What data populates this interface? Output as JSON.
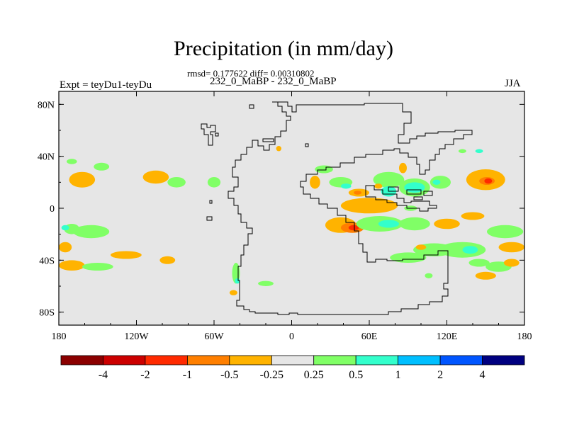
{
  "figure": {
    "title": "Precipitation (in mm/day)",
    "subtitle": "rmsd= 0.177622 diff= 0.00310802",
    "case_label": "232_0_MaBP - 232_0_MaBP",
    "left_label": "Expt = teyDu1-teyDu",
    "right_label": "JJA"
  },
  "map": {
    "background_color": "#e6e6e6",
    "lon_range": [
      -180,
      180
    ],
    "lat_range": [
      -90,
      90
    ],
    "x_ticks": [
      {
        "value": -180,
        "label": "180"
      },
      {
        "value": -120,
        "label": "120W"
      },
      {
        "value": -60,
        "label": "60W"
      },
      {
        "value": 0,
        "label": "0"
      },
      {
        "value": 60,
        "label": "60E"
      },
      {
        "value": 120,
        "label": "120E"
      },
      {
        "value": 180,
        "label": "180"
      }
    ],
    "y_ticks": [
      {
        "value": 80,
        "label": "80N"
      },
      {
        "value": 40,
        "label": "40N"
      },
      {
        "value": 0,
        "label": "0"
      },
      {
        "value": -40,
        "label": "40S"
      },
      {
        "value": -80,
        "label": "80S"
      }
    ]
  },
  "colorbar": {
    "colors": [
      "#8b0000",
      "#cc0000",
      "#ff2a00",
      "#ff7f00",
      "#ffb300",
      "#e6e6e6",
      "#80ff66",
      "#33ffcc",
      "#00bfff",
      "#0055ff",
      "#000080"
    ],
    "labels": [
      "-4",
      "-2",
      "-1",
      "-0.5",
      "-0.25",
      "0.25",
      "0.5",
      "1",
      "2",
      "4"
    ]
  },
  "anomalies": [
    {
      "lon": -162,
      "lat": 22,
      "rlon": 10,
      "rlat": 6,
      "color": "#ffb300"
    },
    {
      "lon": -170,
      "lat": 36,
      "rlon": 4,
      "rlat": 2,
      "color": "#80ff66"
    },
    {
      "lon": -147,
      "lat": 32,
      "rlon": 6,
      "rlat": 3,
      "color": "#80ff66"
    },
    {
      "lon": -170,
      "lat": -16,
      "rlon": 6,
      "rlat": 4,
      "color": "#80ff66"
    },
    {
      "lon": -175,
      "lat": -15,
      "rlon": 3,
      "rlat": 2,
      "color": "#33ffcc"
    },
    {
      "lon": -155,
      "lat": -18,
      "rlon": 14,
      "rlat": 5,
      "color": "#80ff66"
    },
    {
      "lon": -175,
      "lat": -30,
      "rlon": 5,
      "rlat": 4,
      "color": "#ffb300"
    },
    {
      "lon": -170,
      "lat": -44,
      "rlon": 10,
      "rlat": 4,
      "color": "#ffb300"
    },
    {
      "lon": -150,
      "lat": -45,
      "rlon": 12,
      "rlat": 3,
      "color": "#80ff66"
    },
    {
      "lon": -128,
      "lat": -36,
      "rlon": 12,
      "rlat": 3,
      "color": "#ffb300"
    },
    {
      "lon": -96,
      "lat": -40,
      "rlon": 6,
      "rlat": 3,
      "color": "#ffb300"
    },
    {
      "lon": -105,
      "lat": 24,
      "rlon": 10,
      "rlat": 5,
      "color": "#ffb300"
    },
    {
      "lon": -89,
      "lat": 20,
      "rlon": 7,
      "rlat": 4,
      "color": "#80ff66"
    },
    {
      "lon": -60,
      "lat": 20,
      "rlon": 5,
      "rlat": 4,
      "color": "#80ff66"
    },
    {
      "lon": -43,
      "lat": -50,
      "rlon": 3,
      "rlat": 8,
      "color": "#80ff66"
    },
    {
      "lon": -42,
      "lat": -56,
      "rlon": 2,
      "rlat": 2,
      "color": "#33ffcc"
    },
    {
      "lon": -45,
      "lat": -65,
      "rlon": 3,
      "rlat": 2,
      "color": "#ffb300"
    },
    {
      "lon": -20,
      "lat": -58,
      "rlon": 6,
      "rlat": 2,
      "color": "#80ff66"
    },
    {
      "lon": -10,
      "lat": 46,
      "rlon": 2,
      "rlat": 2,
      "color": "#ffb300"
    },
    {
      "lon": 25,
      "lat": 30,
      "rlon": 7,
      "rlat": 3,
      "color": "#80ff66"
    },
    {
      "lon": 18,
      "lat": 20,
      "rlon": 4,
      "rlat": 5,
      "color": "#ffb300"
    },
    {
      "lon": 38,
      "lat": 20,
      "rlon": 9,
      "rlat": 4,
      "color": "#80ff66"
    },
    {
      "lon": 42,
      "lat": 17,
      "rlon": 4,
      "rlat": 2,
      "color": "#33ffcc"
    },
    {
      "lon": 52,
      "lat": 12,
      "rlon": 8,
      "rlat": 3,
      "color": "#ffb300"
    },
    {
      "lon": 51,
      "lat": 12,
      "rlon": 3,
      "rlat": 1.5,
      "color": "#ff7f00"
    },
    {
      "lon": 60,
      "lat": 2,
      "rlon": 22,
      "rlat": 6,
      "color": "#ffb300"
    },
    {
      "lon": 75,
      "lat": 22,
      "rlon": 12,
      "rlat": 6,
      "color": "#80ff66"
    },
    {
      "lon": 75,
      "lat": 13,
      "rlon": 6,
      "rlat": 4,
      "color": "#33ffcc"
    },
    {
      "lon": 67,
      "lat": 17,
      "rlon": 3,
      "rlat": 2,
      "color": "#ffb300"
    },
    {
      "lon": 86,
      "lat": 31,
      "rlon": 3,
      "rlat": 4,
      "color": "#ffb300"
    },
    {
      "lon": 95,
      "lat": 16,
      "rlon": 12,
      "rlat": 7,
      "color": "#80ff66"
    },
    {
      "lon": 95,
      "lat": 16,
      "rlon": 8,
      "rlat": 4,
      "color": "#33ffcc"
    },
    {
      "lon": 115,
      "lat": 20,
      "rlon": 8,
      "rlat": 5,
      "color": "#80ff66"
    },
    {
      "lon": 112,
      "lat": 20,
      "rlon": 3,
      "rlat": 2,
      "color": "#33ffcc"
    },
    {
      "lon": 150,
      "lat": 22,
      "rlon": 15,
      "rlat": 8,
      "color": "#ffb300"
    },
    {
      "lon": 151,
      "lat": 21,
      "rlon": 6,
      "rlat": 3,
      "color": "#ff7f00"
    },
    {
      "lon": 152,
      "lat": 21,
      "rlon": 3,
      "rlat": 2,
      "color": "#ff2a00"
    },
    {
      "lon": 145,
      "lat": 44,
      "rlon": 3,
      "rlat": 1.5,
      "color": "#33ffcc"
    },
    {
      "lon": 132,
      "lat": 44,
      "rlon": 3,
      "rlat": 1.5,
      "color": "#80ff66"
    },
    {
      "lon": 92,
      "lat": 0,
      "rlon": 5,
      "rlat": 2,
      "color": "#80ff66"
    },
    {
      "lon": 38,
      "lat": -13,
      "rlon": 12,
      "rlat": 6,
      "color": "#ffb300"
    },
    {
      "lon": 47,
      "lat": -15,
      "rlon": 9,
      "rlat": 4,
      "color": "#ff7f00"
    },
    {
      "lon": 48,
      "lat": -15,
      "rlon": 4,
      "rlat": 2,
      "color": "#ff2a00"
    },
    {
      "lon": 68,
      "lat": -12,
      "rlon": 18,
      "rlat": 6,
      "color": "#80ff66"
    },
    {
      "lon": 75,
      "lat": -12,
      "rlon": 8,
      "rlat": 3,
      "color": "#33ffcc"
    },
    {
      "lon": 95,
      "lat": -12,
      "rlon": 12,
      "rlat": 5,
      "color": "#80ff66"
    },
    {
      "lon": 120,
      "lat": -12,
      "rlon": 10,
      "rlat": 4,
      "color": "#ffb300"
    },
    {
      "lon": 140,
      "lat": -6,
      "rlon": 9,
      "rlat": 3,
      "color": "#ffb300"
    },
    {
      "lon": 165,
      "lat": -18,
      "rlon": 14,
      "rlat": 5,
      "color": "#80ff66"
    },
    {
      "lon": 110,
      "lat": -32,
      "rlon": 16,
      "rlat": 5,
      "color": "#80ff66"
    },
    {
      "lon": 132,
      "lat": -32,
      "rlon": 18,
      "rlat": 6,
      "color": "#80ff66"
    },
    {
      "lon": 138,
      "lat": -32,
      "rlon": 6,
      "rlat": 3,
      "color": "#33ffcc"
    },
    {
      "lon": 170,
      "lat": -30,
      "rlon": 10,
      "rlat": 4,
      "color": "#ffb300"
    },
    {
      "lon": 90,
      "lat": -38,
      "rlon": 14,
      "rlat": 4,
      "color": "#80ff66"
    },
    {
      "lon": 145,
      "lat": -42,
      "rlon": 8,
      "rlat": 3,
      "color": "#80ff66"
    },
    {
      "lon": 150,
      "lat": -52,
      "rlon": 8,
      "rlat": 3,
      "color": "#ffb300"
    },
    {
      "lon": 160,
      "lat": -45,
      "rlon": 10,
      "rlat": 4,
      "color": "#80ff66"
    },
    {
      "lon": 170,
      "lat": -42,
      "rlon": 6,
      "rlat": 3,
      "color": "#ffb300"
    },
    {
      "lon": 100,
      "lat": -30,
      "rlon": 4,
      "rlat": 2,
      "color": "#ffb300"
    },
    {
      "lon": 106,
      "lat": -52,
      "rlon": 3,
      "rlat": 2,
      "color": "#80ff66"
    }
  ]
}
